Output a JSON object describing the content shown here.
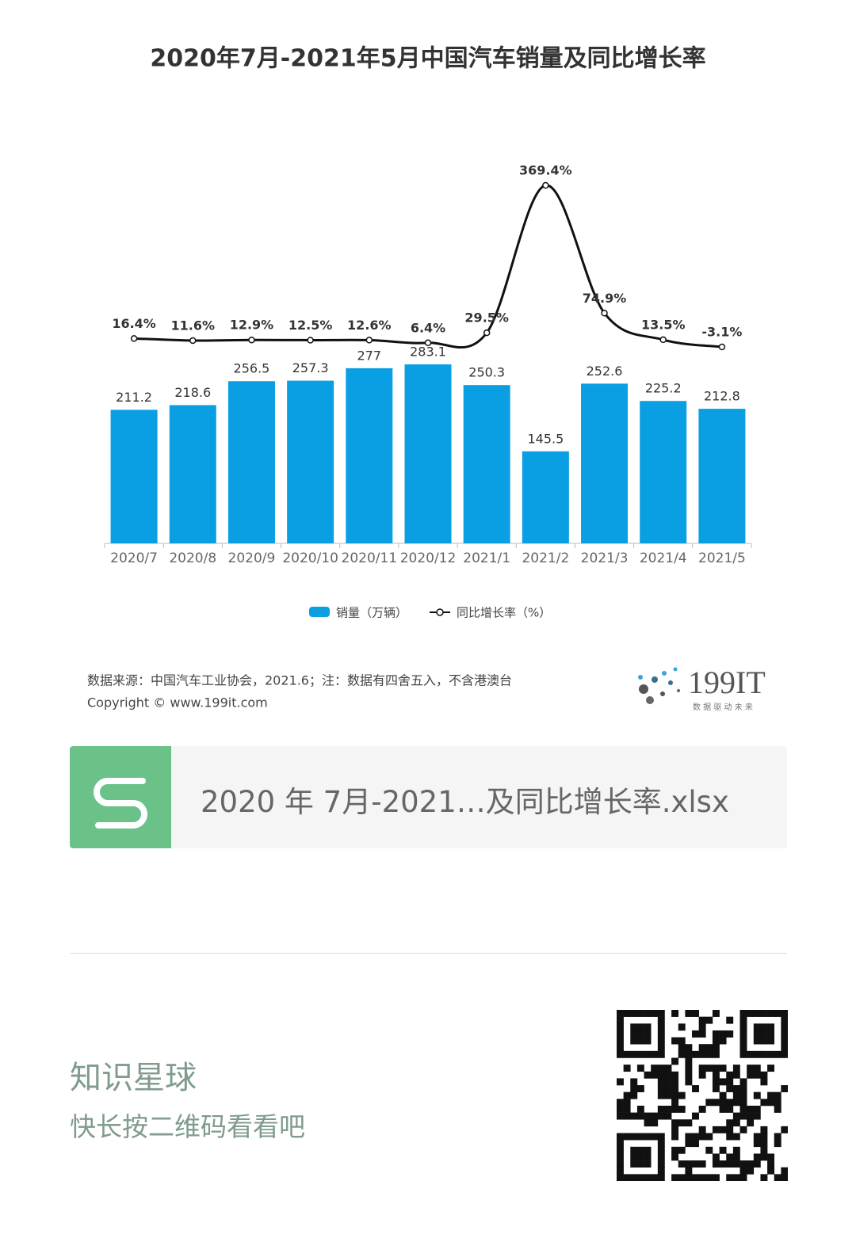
{
  "chart_data": {
    "type": "bar_line",
    "title": "2020年7月-2021年5月中国汽车销量及同比增长率",
    "categories": [
      "2020/7",
      "2020/8",
      "2020/9",
      "2020/10",
      "2020/11",
      "2020/12",
      "2021/1",
      "2021/2",
      "2021/3",
      "2021/4",
      "2021/5"
    ],
    "series": [
      {
        "name": "销量（万辆）",
        "type": "bar",
        "color": "#0a9fe3",
        "values": [
          211.2,
          218.6,
          256.5,
          257.3,
          277,
          283.1,
          250.3,
          145.5,
          252.6,
          225.2,
          212.8
        ]
      },
      {
        "name": "同比增长率（%）",
        "type": "line",
        "axis": "y2",
        "color": "#111111",
        "values": [
          16.4,
          11.6,
          12.9,
          12.5,
          12.6,
          6.4,
          29.5,
          369.4,
          74.9,
          13.5,
          -3.1
        ],
        "value_labels": [
          "16.4%",
          "11.6%",
          "12.9%",
          "12.5%",
          "12.6%",
          "6.4%",
          "29.5%",
          "369.4%",
          "74.9%",
          "13.5%",
          "-3.1%"
        ]
      }
    ],
    "legend": "bottom"
  },
  "source": "数据来源：中国汽车工业协会，2021.6；注：数据有四舍五入，不含港澳台",
  "copyright": "Copyright ©   www.199it.com",
  "logo": {
    "name": "199IT",
    "slogan": "数 据 驱 动 未 来"
  },
  "file": {
    "name": "2020 年 7月-2021…及同比增长率.xlsx"
  },
  "footer": {
    "title": "知识星球",
    "subtitle": "快长按二维码看看吧"
  }
}
